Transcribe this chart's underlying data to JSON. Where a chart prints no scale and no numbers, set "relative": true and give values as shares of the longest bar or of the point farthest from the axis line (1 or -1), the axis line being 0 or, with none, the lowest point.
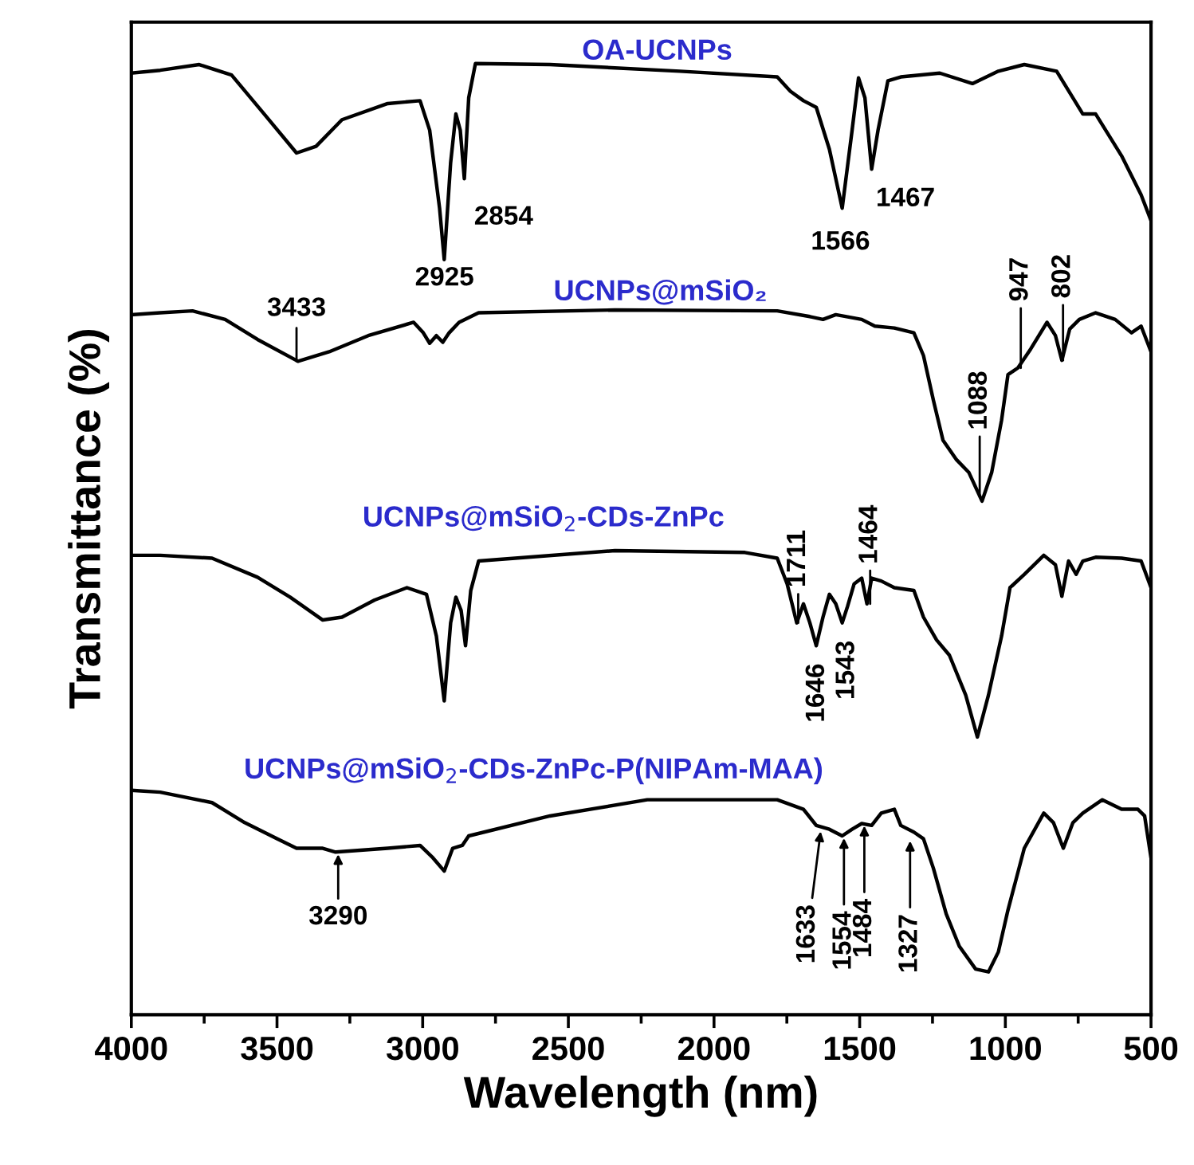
{
  "chart_data": {
    "type": "line",
    "relative": true,
    "xlabel": "Wavelength (nm)",
    "ylabel": "Transmittance (%)",
    "xlim": [
      4000,
      500
    ],
    "xticks": [
      4000,
      3500,
      3000,
      2500,
      2000,
      1500,
      1000,
      500
    ],
    "grid": false,
    "legend": false,
    "tick_labels": "x",
    "series": [
      {
        "name": "OA-UCNPs",
        "color": "#000000",
        "x": [
          4000,
          3901,
          3767,
          3656,
          3544,
          3433,
          3366,
          3277,
          3120,
          3009,
          2976,
          2942,
          2926,
          2904,
          2886,
          2871,
          2857,
          2842,
          2819,
          2563,
          2117,
          1783,
          1738,
          1693,
          1649,
          1604,
          1560,
          1526,
          1504,
          1482,
          1459,
          1437,
          1403,
          1359,
          1225,
          1113,
          1024,
          935,
          824,
          734,
          690,
          601,
          534,
          500
        ],
        "values": [
          0.99,
          0.993,
          0.999,
          0.988,
          0.947,
          0.906,
          0.913,
          0.941,
          0.958,
          0.961,
          0.93,
          0.848,
          0.794,
          0.896,
          0.947,
          0.93,
          0.879,
          0.964,
          1.0,
          0.999,
          0.992,
          0.986,
          0.971,
          0.961,
          0.954,
          0.91,
          0.848,
          0.93,
          0.985,
          0.964,
          0.889,
          0.93,
          0.982,
          0.986,
          0.99,
          0.979,
          0.992,
          0.999,
          0.992,
          0.947,
          0.947,
          0.903,
          0.862,
          0.835
        ]
      },
      {
        "name": "UCNPs@mSiO₂",
        "color": "#000000",
        "x": [
          4000,
          3901,
          3790,
          3678,
          3567,
          3428,
          3321,
          3187,
          3031,
          2998,
          2976,
          2953,
          2931,
          2909,
          2875,
          2808,
          2340,
          1783,
          1671,
          1626,
          1582,
          1493,
          1448,
          1381,
          1314,
          1281,
          1247,
          1214,
          1169,
          1125,
          1080,
          1047,
          1013,
          991,
          957,
          913,
          857,
          828,
          806,
          779,
          746,
          690,
          623,
          567,
          534,
          500
        ],
        "values": [
          0.736,
          0.738,
          0.74,
          0.731,
          0.71,
          0.687,
          0.697,
          0.714,
          0.728,
          0.717,
          0.706,
          0.714,
          0.707,
          0.717,
          0.728,
          0.738,
          0.741,
          0.74,
          0.734,
          0.731,
          0.736,
          0.731,
          0.724,
          0.722,
          0.717,
          0.693,
          0.646,
          0.604,
          0.584,
          0.57,
          0.54,
          0.57,
          0.625,
          0.673,
          0.68,
          0.7,
          0.728,
          0.714,
          0.688,
          0.721,
          0.731,
          0.738,
          0.731,
          0.717,
          0.724,
          0.697
        ]
      },
      {
        "name": "UCNPs@mSiO$_{2}$-CDs-ZnPc",
        "color": "#000000",
        "x": [
          4000,
          3901,
          3723,
          3567,
          3455,
          3343,
          3277,
          3165,
          3054,
          2987,
          2953,
          2926,
          2904,
          2886,
          2868,
          2853,
          2835,
          2808,
          2340,
          1894,
          1783,
          1749,
          1716,
          1693,
          1671,
          1649,
          1626,
          1604,
          1582,
          1560,
          1542,
          1519,
          1493,
          1475,
          1459,
          1426,
          1381,
          1314,
          1281,
          1236,
          1192,
          1136,
          1096,
          1058,
          1013,
          984,
          935,
          868,
          828,
          806,
          783,
          757,
          734,
          690,
          601,
          534,
          500
        ],
        "values": [
          0.483,
          0.483,
          0.48,
          0.46,
          0.439,
          0.415,
          0.418,
          0.436,
          0.449,
          0.442,
          0.398,
          0.33,
          0.412,
          0.439,
          0.425,
          0.388,
          0.446,
          0.477,
          0.488,
          0.486,
          0.48,
          0.453,
          0.412,
          0.432,
          0.412,
          0.388,
          0.418,
          0.442,
          0.432,
          0.412,
          0.429,
          0.453,
          0.459,
          0.432,
          0.459,
          0.456,
          0.449,
          0.446,
          0.418,
          0.394,
          0.378,
          0.336,
          0.292,
          0.336,
          0.398,
          0.449,
          0.463,
          0.483,
          0.473,
          0.44,
          0.477,
          0.463,
          0.477,
          0.481,
          0.48,
          0.477,
          0.449
        ]
      },
      {
        "name": "UCNPs@mSiO$_{2}$-CDs-ZnPc-P(NIPAm-MAA)",
        "color": "#000000",
        "x": [
          4000,
          3901,
          3723,
          3611,
          3500,
          3433,
          3343,
          3299,
          3120,
          3009,
          2965,
          2926,
          2897,
          2864,
          2842,
          2563,
          2229,
          1783,
          1693,
          1649,
          1604,
          1560,
          1526,
          1493,
          1459,
          1426,
          1381,
          1359,
          1314,
          1281,
          1247,
          1203,
          1158,
          1102,
          1058,
          1024,
          991,
          935,
          868,
          835,
          801,
          768,
          734,
          667,
          601,
          545,
          522,
          500
        ],
        "values": [
          0.236,
          0.234,
          0.223,
          0.202,
          0.185,
          0.175,
          0.175,
          0.171,
          0.175,
          0.178,
          0.165,
          0.151,
          0.175,
          0.178,
          0.188,
          0.209,
          0.226,
          0.226,
          0.216,
          0.199,
          0.195,
          0.188,
          0.195,
          0.201,
          0.199,
          0.212,
          0.216,
          0.199,
          0.192,
          0.185,
          0.154,
          0.106,
          0.072,
          0.048,
          0.045,
          0.066,
          0.11,
          0.175,
          0.212,
          0.202,
          0.175,
          0.202,
          0.212,
          0.226,
          0.216,
          0.216,
          0.209,
          0.165
        ]
      }
    ],
    "annotations": [
      {
        "text": "2854",
        "x": 2854,
        "y": 0.879
      },
      {
        "text": "2925",
        "x": 2925,
        "y": 0.794
      },
      {
        "text": "1566",
        "x": 1566,
        "y": 0.848
      },
      {
        "text": "1467",
        "x": 1467,
        "y": 0.889
      },
      {
        "text": "3433",
        "x": 3433,
        "y": 0.687
      },
      {
        "text": "1088",
        "x": 1088,
        "y": 0.545
      },
      {
        "text": "947",
        "x": 947,
        "y": 0.68
      },
      {
        "text": "802",
        "x": 802,
        "y": 0.688
      },
      {
        "text": "1711",
        "x": 1711,
        "y": 0.412
      },
      {
        "text": "1464",
        "x": 1464,
        "y": 0.432
      },
      {
        "text": "1646",
        "x": 1646,
        "y": 0.388
      },
      {
        "text": "1543",
        "x": 1543,
        "y": 0.412
      },
      {
        "text": "3290",
        "x": 3290,
        "y": 0.171
      },
      {
        "text": "1633",
        "x": 1633,
        "y": 0.195
      },
      {
        "text": "1554",
        "x": 1554,
        "y": 0.188
      },
      {
        "text": "1484",
        "x": 1484,
        "y": 0.201
      },
      {
        "text": "1327",
        "x": 1327,
        "y": 0.185
      }
    ]
  }
}
